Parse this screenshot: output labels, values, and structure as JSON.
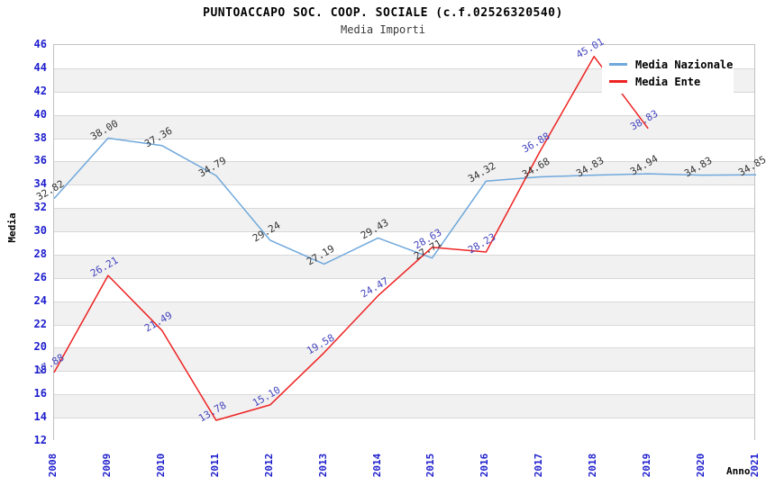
{
  "header": {
    "title": "PUNTOACCAPO SOC. COOP. SOCIALE (c.f.02526320540)",
    "subtitle": "Media Importi"
  },
  "chart_data": {
    "type": "line",
    "title": "PUNTOACCAPO SOC. COOP. SOCIALE (c.f.02526320540)",
    "subtitle": "Media Importi",
    "xlabel": "Anno",
    "ylabel": "Media",
    "x": [
      2008,
      2009,
      2010,
      2011,
      2012,
      2013,
      2014,
      2015,
      2016,
      2017,
      2018,
      2019,
      2020,
      2021
    ],
    "series": [
      {
        "name": "Media Nazionale",
        "color": "#6FA8DC",
        "label_color": "#333333",
        "values": [
          32.82,
          38.0,
          37.36,
          34.79,
          29.24,
          27.19,
          29.43,
          27.71,
          34.32,
          34.68,
          34.83,
          34.94,
          34.83,
          34.85
        ]
      },
      {
        "name": "Media Ente",
        "color": "#EE2222",
        "label_color": "#4444BF",
        "values": [
          17.88,
          26.21,
          21.49,
          13.78,
          15.1,
          19.58,
          24.47,
          28.63,
          28.23,
          36.88,
          45.01,
          38.83
        ]
      }
    ],
    "ylim": [
      12,
      46
    ],
    "ytick_step": 2,
    "yticks": [
      12,
      14,
      16,
      18,
      20,
      22,
      24,
      26,
      28,
      30,
      32,
      34,
      36,
      38,
      40,
      42,
      44,
      46
    ],
    "grid": "horizontal-bands",
    "band_color": "#f1f1f1",
    "gridline_color": "#d8d8d8",
    "tick_label_color": "#1c1ccd",
    "legend_position": "top-right"
  }
}
